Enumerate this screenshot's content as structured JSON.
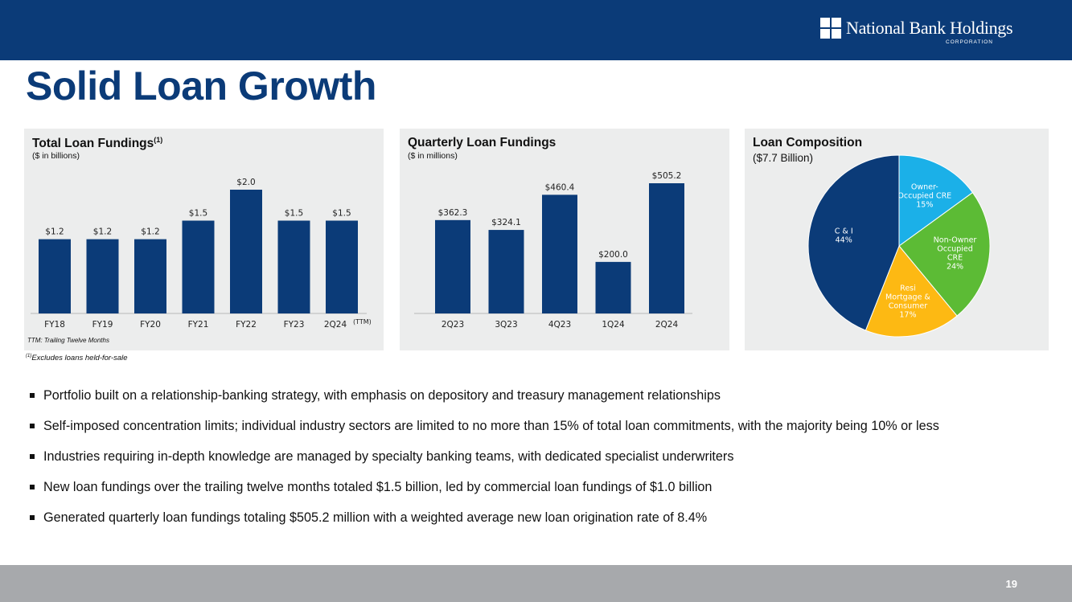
{
  "brand": {
    "name": "National Bank Holdings",
    "sub": "CORPORATION"
  },
  "title": "Solid Loan Growth",
  "colors": {
    "navy": "#0b3b78",
    "panel_bg": "#eceded",
    "footer": "#a7a9ac",
    "pie_cyan": "#1bb0e8",
    "pie_green": "#5cbb35",
    "pie_yellow": "#fdb913"
  },
  "panels": {
    "total": {
      "title": "Total Loan Fundings",
      "title_sup": "(1)",
      "subtitle": "($ in billions)",
      "ttm_note": "TTM: Trailing Twelve Months",
      "last_sup": "(TTM)"
    },
    "quarterly": {
      "title": "Quarterly Loan Fundings",
      "subtitle": "($ in millions)"
    },
    "composition": {
      "title": "Loan Composition",
      "subtitle": "($7.7 Billion)"
    }
  },
  "footnote": {
    "sup": "(1)",
    "text": "Excludes loans held-for-sale"
  },
  "chart_data": [
    {
      "type": "bar",
      "title": "Total Loan Fundings",
      "categories": [
        "FY18",
        "FY19",
        "FY20",
        "FY21",
        "FY22",
        "FY23",
        "2Q24"
      ],
      "values": [
        1.2,
        1.2,
        1.2,
        1.5,
        2.0,
        1.5,
        1.5
      ],
      "labels": [
        "$1.2",
        "$1.2",
        "$1.2",
        "$1.5",
        "$2.0",
        "$1.5",
        "$1.5"
      ],
      "ylim": [
        0,
        2.0
      ]
    },
    {
      "type": "bar",
      "title": "Quarterly Loan Fundings",
      "categories": [
        "2Q23",
        "3Q23",
        "4Q23",
        "1Q24",
        "2Q24"
      ],
      "values": [
        362.3,
        324.1,
        460.4,
        200.0,
        505.2
      ],
      "labels": [
        "$362.3",
        "$324.1",
        "$460.4",
        "$200.0",
        "$505.2"
      ],
      "ylim": [
        0,
        505.2
      ]
    },
    {
      "type": "pie",
      "title": "Loan Composition",
      "slices": [
        {
          "lines": [
            "Owner-",
            "Occupied CRE",
            "15%"
          ],
          "value": 15,
          "color": "#1bb0e8"
        },
        {
          "lines": [
            "Non-Owner",
            "Occupied",
            "CRE",
            "24%"
          ],
          "value": 24,
          "color": "#5cbb35"
        },
        {
          "lines": [
            "Resi",
            "Mortgage &",
            "Consumer",
            "17%"
          ],
          "value": 17,
          "color": "#fdb913"
        },
        {
          "lines": [
            "C & I",
            "44%"
          ],
          "value": 44,
          "color": "#0b3b78"
        }
      ]
    }
  ],
  "bullets": [
    "Portfolio built on a relationship-banking strategy, with emphasis on depository and treasury management relationships",
    "Self-imposed concentration limits; individual industry sectors are limited to no more than 15% of total loan commitments, with the majority being 10% or less",
    "Industries requiring in-depth knowledge are managed by specialty banking teams, with dedicated specialist underwriters",
    "New loan fundings over the trailing twelve months totaled $1.5 billion, led by commercial loan fundings of $1.0 billion",
    "Generated quarterly loan fundings totaling $505.2 million with a weighted average new loan origination rate of 8.4%"
  ],
  "page_number": "19"
}
